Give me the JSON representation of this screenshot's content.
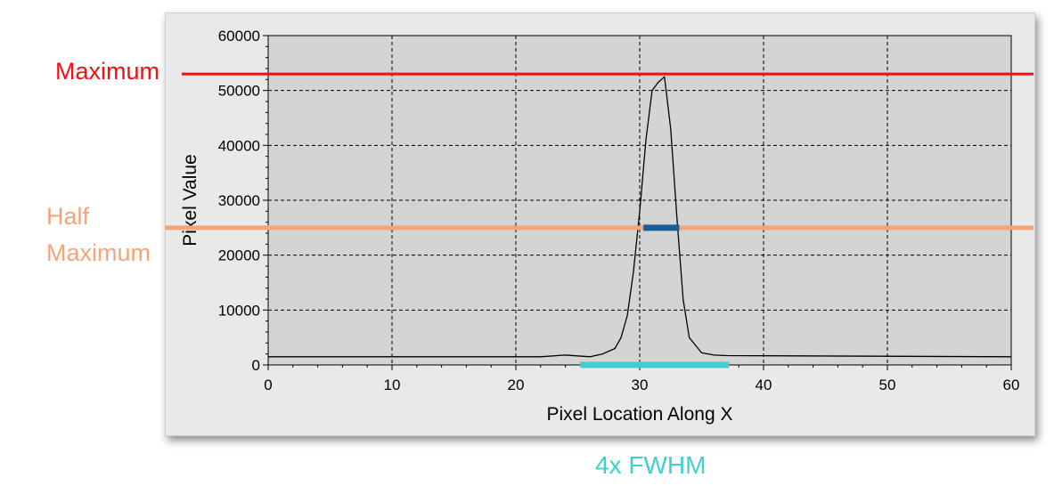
{
  "chart_data": {
    "type": "line",
    "xlabel": "Pixel Location Along X",
    "ylabel": "Pixel Value",
    "xlim": [
      0,
      60
    ],
    "ylim": [
      0,
      60000
    ],
    "xticks": [
      "0",
      "10",
      "20",
      "30",
      "40",
      "50",
      "60"
    ],
    "yticks": [
      "0",
      "10000",
      "20000",
      "30000",
      "40000",
      "50000",
      "60000"
    ],
    "grid": true,
    "series": [
      {
        "color": "#000000",
        "x": [
          0,
          22,
          24,
          26,
          27,
          28,
          28.5,
          29,
          29.5,
          30,
          30.5,
          31,
          31.5,
          32,
          32.5,
          33,
          33.5,
          34,
          35,
          36,
          37,
          60
        ],
        "y": [
          1500,
          1500,
          1800,
          1500,
          2000,
          3000,
          5000,
          9000,
          17000,
          28000,
          41000,
          50000,
          51500,
          52500,
          43000,
          27000,
          12000,
          5000,
          2200,
          1800,
          1700,
          1500
        ]
      }
    ],
    "annotations": {
      "maximum": {
        "label": "Maximum",
        "y": 53000,
        "color": "#ee1111"
      },
      "half_maximum": {
        "label_line1": "Half",
        "label_line2": "Maximum",
        "y": 25000,
        "color": "#f5a47a"
      },
      "fwhm_bar": {
        "x": [
          30.3,
          33.2
        ],
        "y": 25000,
        "color": "#1a5f94"
      },
      "fwhm_span": {
        "label": "4x FWHM",
        "x": [
          25.2,
          37.2
        ],
        "y": 0,
        "color": "#3fcfcf"
      }
    }
  }
}
